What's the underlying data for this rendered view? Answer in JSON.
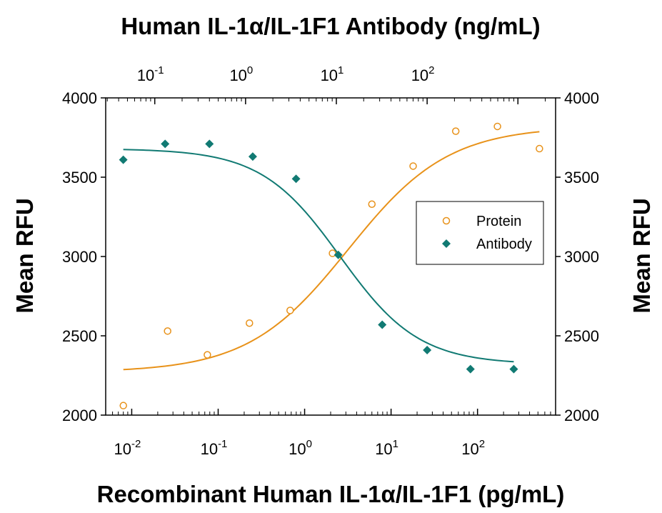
{
  "chart_data": {
    "type": "scatter",
    "top_title": "Human IL-1α/IL-1F1 Antibody (ng/mL)",
    "xlabel": "Recombinant Human IL-1α/IL-1F1 (pg/mL)",
    "ylabel_left": "Mean RFU",
    "ylabel_right": "Mean RFU",
    "x_scale": "log",
    "xlim_bottom": [
      0.005,
      800
    ],
    "xlim_top": [
      0.0288,
      2600
    ],
    "ylim": [
      2000,
      4000
    ],
    "y_ticks": [
      "2000",
      "2500",
      "3000",
      "3500",
      "4000"
    ],
    "x_ticks_bottom": [
      {
        "base": "10",
        "exp": "-2",
        "value": 0.01
      },
      {
        "base": "10",
        "exp": "-1",
        "value": 0.1
      },
      {
        "base": "10",
        "exp": "0",
        "value": 1
      },
      {
        "base": "10",
        "exp": "1",
        "value": 10
      },
      {
        "base": "10",
        "exp": "2",
        "value": 100
      }
    ],
    "x_ticks_top": [
      {
        "base": "10",
        "exp": "-1",
        "value": 0.1
      },
      {
        "base": "10",
        "exp": "0",
        "value": 1
      },
      {
        "base": "10",
        "exp": "1",
        "value": 10
      },
      {
        "base": "10",
        "exp": "2",
        "value": 100
      }
    ],
    "legend": {
      "position": "right-center",
      "entries": [
        "Protein",
        "Antibody"
      ]
    },
    "grid": false,
    "series": [
      {
        "name": "Protein",
        "axis": "bottom",
        "marker": "open-circle",
        "color": "#e8921a",
        "x": [
          0.008,
          0.026,
          0.075,
          0.23,
          0.68,
          2.1,
          6.0,
          18,
          56,
          170,
          520
        ],
        "y": [
          2060,
          2530,
          2380,
          2580,
          2660,
          3020,
          3330,
          3570,
          3790,
          3820,
          3680
        ],
        "fit": {
          "bottom": 2270,
          "top": 3820,
          "ec50": 3.2,
          "hill": 0.75
        }
      },
      {
        "name": "Antibody",
        "axis": "top",
        "marker": "filled-diamond",
        "color": "#117a73",
        "x": [
          0.045,
          0.13,
          0.4,
          1.2,
          3.6,
          10.5,
          32,
          100,
          300,
          900
        ],
        "y": [
          3610,
          3710,
          3710,
          3630,
          3490,
          3010,
          2570,
          2410,
          2290,
          2290
        ],
        "fit": {
          "bottom": 2320,
          "top": 3680,
          "ec50": 11,
          "hill": -1.0
        }
      }
    ]
  }
}
